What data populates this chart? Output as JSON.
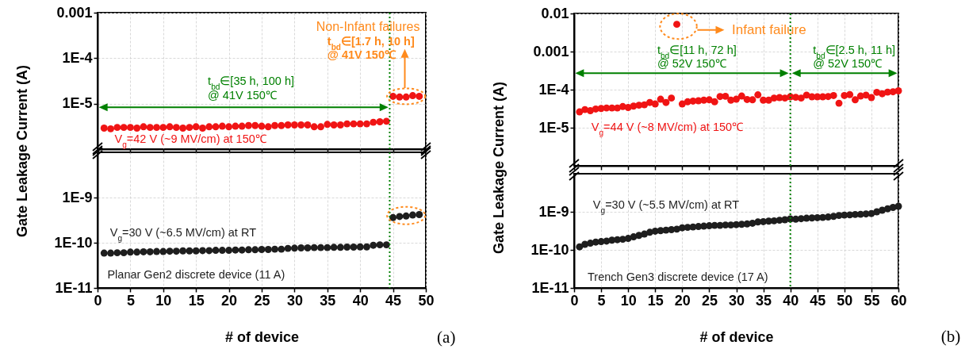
{
  "chart_data": [
    {
      "type": "scatter",
      "ylabel": "Gate Leakage Current (A)",
      "log": true,
      "grid": true,
      "marker": "circle",
      "tick_labels": "y",
      "xlim": [
        0,
        50
      ],
      "xticks": [
        0,
        5,
        10,
        15,
        20,
        25,
        30,
        35,
        40,
        45,
        50
      ],
      "ylim": [
        1e-06,
        0.001
      ],
      "yticks": [
        0.001,
        {
          "value": 0.0001,
          "label": "1E-4"
        },
        {
          "value": 1e-05,
          "label": "1E-5"
        }
      ],
      "x": [
        1,
        2,
        3,
        4,
        5,
        6,
        7,
        8,
        9,
        10,
        11,
        12,
        13,
        14,
        15,
        16,
        17,
        18,
        19,
        20,
        21,
        22,
        23,
        24,
        25,
        26,
        27,
        28,
        29,
        30,
        31,
        32,
        33,
        34,
        35,
        36,
        37,
        38,
        39,
        40,
        41,
        42,
        43,
        44,
        45,
        46,
        47,
        48,
        49
      ],
      "series": [
        {
          "color": "#f01414",
          "values": [
            2.9e-06,
            2.8e-06,
            3e-06,
            3e-06,
            3e-06,
            2.9e-06,
            3.1e-06,
            3e-06,
            3e-06,
            3e-06,
            3.1e-06,
            3e-06,
            2.9e-06,
            3e-06,
            3.1e-06,
            2.9e-06,
            3.1e-06,
            3.1e-06,
            3.2e-06,
            3.1e-06,
            3.2e-06,
            3.2e-06,
            3.3e-06,
            3.3e-06,
            3.2e-06,
            3.1e-06,
            3.3e-06,
            3.3e-06,
            3.4e-06,
            3.4e-06,
            3.4e-06,
            3.4e-06,
            3.1e-06,
            3.1e-06,
            3.5e-06,
            3.4e-06,
            3.4e-06,
            3.6e-06,
            3.6e-06,
            3.6e-06,
            3.6e-06,
            3.9e-06,
            4e-06,
            4.1e-06,
            1.45e-05,
            1.4e-05,
            1.4e-05,
            1.5e-05,
            1.45e-05
          ]
        }
      ],
      "ref_lines": [
        {
          "axis": "x",
          "value": 44.5,
          "color": "#008000",
          "line_style": "dotted"
        }
      ],
      "annotations": [
        "V$_{g}$=42 V (~9 MV/cm) at 150℃",
        "t$_{bd}$∈[35 h, 100 h]",
        "@ 41V 150℃",
        "Non-Infant failures",
        "t$_{bd}$∈[1.7 h, 10 h]",
        "@ 41V 150℃"
      ]
    },
    {
      "type": "scatter",
      "xlabel": "# of device",
      "log": true,
      "grid": true,
      "marker": "circle",
      "xlim": [
        0,
        50
      ],
      "xticks": [
        0,
        5,
        10,
        15,
        20,
        25,
        30,
        35,
        40,
        45,
        50
      ],
      "ylim": [
        1e-11,
        1e-08
      ],
      "yticks": [
        {
          "value": 1e-09,
          "label": "1E-9"
        },
        {
          "value": 1e-10,
          "label": "1E-10"
        },
        {
          "value": 1e-11,
          "label": "1E-11"
        }
      ],
      "x": [
        1,
        2,
        3,
        4,
        5,
        6,
        7,
        8,
        9,
        10,
        11,
        12,
        13,
        14,
        15,
        16,
        17,
        18,
        19,
        20,
        21,
        22,
        23,
        24,
        25,
        26,
        27,
        28,
        29,
        30,
        31,
        32,
        33,
        34,
        35,
        36,
        37,
        38,
        39,
        40,
        41,
        42,
        43,
        44,
        45,
        46,
        47,
        48,
        49
      ],
      "series": [
        {
          "color": "#1e1e1e",
          "values": [
            5.9e-11,
            5.9e-11,
            6e-11,
            6e-11,
            6.2e-11,
            6.2e-11,
            6.3e-11,
            6.3e-11,
            6.4e-11,
            6.4e-11,
            6.5e-11,
            6.5e-11,
            6.6e-11,
            6.6e-11,
            6.6e-11,
            6.7e-11,
            6.7e-11,
            6.8e-11,
            6.8e-11,
            6.8e-11,
            6.9e-11,
            6.9e-11,
            7e-11,
            7e-11,
            7.1e-11,
            7.1e-11,
            7.2e-11,
            7.2e-11,
            7.5e-11,
            7.6e-11,
            7.7e-11,
            7.7e-11,
            7.8e-11,
            7.8e-11,
            7.8e-11,
            7.9e-11,
            7.9e-11,
            8e-11,
            8e-11,
            8.1e-11,
            8.1e-11,
            8.8e-11,
            9e-11,
            9e-11,
            3.6e-10,
            3.8e-10,
            3.9e-10,
            4.1e-10,
            4.2e-10
          ]
        }
      ],
      "ref_lines": [
        {
          "axis": "x",
          "value": 44.5,
          "color": "#008000",
          "line_style": "dotted"
        }
      ],
      "annotations": [
        "V$_{g}$=30 V (~6.5 MV/cm) at RT",
        "Planar Gen2 discrete device (11 A)",
        "(a)"
      ]
    },
    {
      "type": "scatter",
      "ylabel": "Gate Leakage Current (A)",
      "log": true,
      "grid": true,
      "marker": "circle",
      "tick_labels": "y",
      "xlim": [
        0,
        60
      ],
      "xticks": [
        0,
        5,
        10,
        15,
        20,
        25,
        30,
        35,
        40,
        45,
        50,
        55,
        60
      ],
      "ylim": [
        1e-06,
        0.01
      ],
      "yticks": [
        0.01,
        0.001,
        {
          "value": 0.0001,
          "label": "1E-4"
        },
        {
          "value": 1e-05,
          "label": "1E-5"
        }
      ],
      "x": [
        1,
        2,
        3,
        4,
        5,
        6,
        7,
        8,
        9,
        10,
        11,
        12,
        13,
        14,
        15,
        16,
        17,
        18,
        19,
        20,
        21,
        22,
        23,
        24,
        25,
        26,
        27,
        28,
        29,
        30,
        31,
        32,
        33,
        34,
        35,
        36,
        37,
        38,
        39,
        40,
        41,
        42,
        43,
        44,
        45,
        46,
        47,
        48,
        49,
        50,
        51,
        52,
        53,
        54,
        55,
        56,
        57,
        58,
        59,
        60
      ],
      "series": [
        {
          "color": "#f01414",
          "values": [
            2.6e-05,
            3e-05,
            2.8e-05,
            3.1e-05,
            3.2e-05,
            3.3e-05,
            3.3e-05,
            3.3e-05,
            3.6e-05,
            3.4e-05,
            3.7e-05,
            3.9e-05,
            4e-05,
            4.6e-05,
            4.2e-05,
            5.6e-05,
            4.6e-05,
            6e-05,
            0.0052,
            4.2e-05,
            4.8e-05,
            5e-05,
            5.1e-05,
            5.3e-05,
            5.4e-05,
            4.8e-05,
            6.6e-05,
            6.7e-05,
            5.3e-05,
            5.6e-05,
            6.8e-05,
            5.5e-05,
            5.4e-05,
            7.3e-05,
            5.3e-05,
            5.3e-05,
            6e-05,
            6.2e-05,
            6e-05,
            6.5e-05,
            6.3e-05,
            6e-05,
            7.2e-05,
            6.5e-05,
            6.5e-05,
            6.5e-05,
            6.6e-05,
            7e-05,
            4.4e-05,
            7e-05,
            7.4e-05,
            5.4e-05,
            6.8e-05,
            7.2e-05,
            6.2e-05,
            8.5e-05,
            7.8e-05,
            8.6e-05,
            8.8e-05,
            9.3e-05
          ]
        }
      ],
      "ref_lines": [
        {
          "axis": "x",
          "value": 40,
          "color": "#008000",
          "line_style": "dotted"
        }
      ],
      "annotations": [
        "Infant failure",
        "t$_{bd}$∈[11 h, 72 h]",
        "@ 52V 150℃",
        "t$_{bd}$∈[2.5 h, 11 h]",
        "@ 52V 150℃",
        "V$_{g}$=44 V (~8 MV/cm) at 150℃"
      ]
    },
    {
      "type": "scatter",
      "xlabel": "# of device",
      "log": true,
      "grid": true,
      "marker": "circle",
      "xlim": [
        0,
        60
      ],
      "xticks": [
        0,
        5,
        10,
        15,
        20,
        25,
        30,
        35,
        40,
        45,
        50,
        55,
        60
      ],
      "ylim": [
        1e-11,
        1e-08
      ],
      "yticks": [
        {
          "value": 1e-09,
          "label": "1E-9"
        },
        {
          "value": 1e-10,
          "label": "1E-10"
        },
        {
          "value": 1e-11,
          "label": "1E-11"
        }
      ],
      "x": [
        1,
        2,
        3,
        4,
        5,
        6,
        7,
        8,
        9,
        10,
        11,
        12,
        13,
        14,
        15,
        16,
        17,
        18,
        19,
        20,
        21,
        22,
        23,
        24,
        25,
        26,
        27,
        28,
        29,
        30,
        31,
        32,
        33,
        34,
        35,
        36,
        37,
        38,
        39,
        40,
        41,
        42,
        43,
        44,
        45,
        46,
        47,
        48,
        49,
        50,
        51,
        52,
        53,
        54,
        55,
        56,
        57,
        58,
        59,
        60
      ],
      "series": [
        {
          "color": "#1e1e1e",
          "values": [
            1.2e-10,
            1.4e-10,
            1.5e-10,
            1.6e-10,
            1.65e-10,
            1.7e-10,
            1.8e-10,
            1.85e-10,
            1.9e-10,
            2e-10,
            2.2e-10,
            2.4e-10,
            2.6e-10,
            2.9e-10,
            3.1e-10,
            3.2e-10,
            3.3e-10,
            3.4e-10,
            3.5e-10,
            3.8e-10,
            3.9e-10,
            4e-10,
            4.1e-10,
            4.2e-10,
            4.3e-10,
            4.4e-10,
            4.4e-10,
            4.5e-10,
            4.5e-10,
            4.6e-10,
            4.7e-10,
            4.8e-10,
            5e-10,
            5.4e-10,
            5.5e-10,
            5.7e-10,
            5.8e-10,
            6e-10,
            6.2e-10,
            6.5e-10,
            6.4e-10,
            6.6e-10,
            6.8e-10,
            6.9e-10,
            7e-10,
            7.1e-10,
            7.3e-10,
            7.6e-10,
            8e-10,
            8.2e-10,
            8.3e-10,
            8.5e-10,
            8.6e-10,
            8.8e-10,
            9e-10,
            1e-09,
            1.1e-09,
            1.2e-09,
            1.3e-09,
            1.4e-09
          ]
        }
      ],
      "ref_lines": [
        {
          "axis": "x",
          "value": 40,
          "color": "#008000",
          "line_style": "dotted"
        }
      ],
      "annotations": [
        "V$_{g}$=30 V (~5.5 MV/cm) at RT",
        "Trench Gen3 discrete device (17 A)",
        "(b)"
      ]
    }
  ]
}
